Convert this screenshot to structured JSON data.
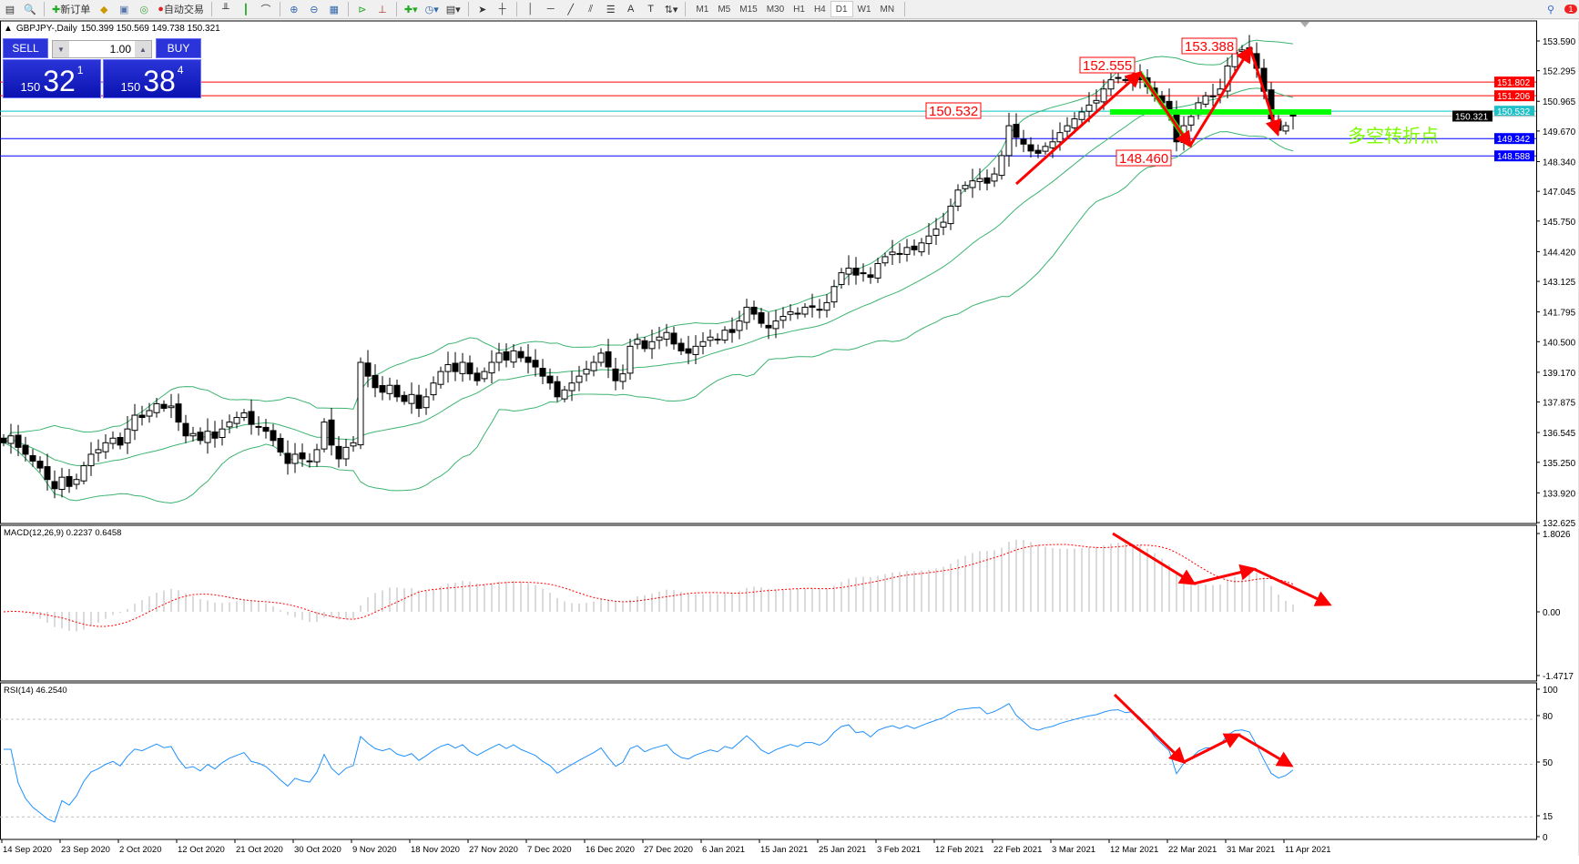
{
  "toolbar": {
    "new_order": "新订单",
    "auto_trading": "自动交易",
    "timeframes": [
      "M1",
      "M5",
      "M15",
      "M30",
      "H1",
      "H4",
      "D1",
      "W1",
      "MN"
    ],
    "active_timeframe": "D1",
    "notification_count": "1"
  },
  "header": {
    "symbol": "GBPJPY-,Daily",
    "ohlc": "150.399 150.569 149.738 150.321"
  },
  "trade_panel": {
    "sell_label": "SELL",
    "buy_label": "BUY",
    "lot": "1.00",
    "sell_small": "150",
    "sell_big": "32",
    "sell_pip": "1",
    "buy_small": "150",
    "buy_big": "38",
    "buy_pip": "4"
  },
  "colors": {
    "bull": "#ffffff",
    "bear": "#000000",
    "bands": "#3cb371",
    "macd_hist": "#c0c0c0",
    "macd_signal": "#ff0000",
    "rsi": "#1e90ff",
    "annotation": "#ff0000",
    "pivot_line": "#00ff00"
  },
  "chart_data": {
    "type": "candlestick",
    "symbol": "GBPJPY-",
    "timeframe": "Daily",
    "ylim": [
      132.625,
      153.59
    ],
    "price_ticks": [
      "153.590",
      "152.295",
      "150.965",
      "149.670",
      "148.340",
      "147.045",
      "145.750",
      "144.420",
      "143.125",
      "141.795",
      "140.500",
      "139.170",
      "137.875",
      "136.545",
      "135.250",
      "133.920",
      "132.625"
    ],
    "date_ticks": [
      "14 Sep 2020",
      "23 Sep 2020",
      "2 Oct 2020",
      "12 Oct 2020",
      "21 Oct 2020",
      "30 Oct 2020",
      "9 Nov 2020",
      "18 Nov 2020",
      "27 Nov 2020",
      "7 Dec 2020",
      "16 Dec 2020",
      "27 Dec 2020",
      "6 Jan 2021",
      "15 Jan 2021",
      "25 Jan 2021",
      "3 Feb 2021",
      "12 Feb 2021",
      "22 Feb 2021",
      "3 Mar 2021",
      "12 Mar 2021",
      "22 Mar 2021",
      "31 Mar 2021",
      "11 Apr 2021"
    ],
    "last_bar": {
      "open": 150.399,
      "high": 150.569,
      "low": 149.738,
      "close": 150.321
    },
    "closes": [
      136.1,
      136.4,
      135.9,
      135.6,
      135.3,
      135.0,
      134.5,
      134.1,
      134.6,
      134.2,
      134.5,
      135.1,
      135.6,
      135.8,
      136.1,
      136.3,
      136.0,
      136.7,
      137.3,
      137.2,
      137.5,
      137.8,
      137.6,
      137.7,
      137.0,
      136.4,
      136.5,
      136.2,
      136.6,
      136.3,
      136.7,
      137.0,
      137.2,
      137.4,
      136.9,
      136.8,
      136.6,
      136.2,
      135.7,
      135.2,
      135.6,
      135.4,
      135.3,
      135.8,
      137.0,
      136.0,
      135.4,
      135.9,
      136.1,
      139.6,
      139.0,
      138.5,
      138.3,
      138.6,
      138.1,
      137.9,
      138.2,
      137.6,
      138.1,
      138.7,
      139.2,
      139.5,
      139.2,
      139.6,
      139.1,
      138.8,
      139.2,
      139.6,
      140.0,
      139.7,
      140.1,
      139.8,
      139.6,
      139.4,
      139.0,
      138.7,
      138.1,
      138.4,
      138.7,
      139.0,
      139.3,
      139.6,
      140.0,
      139.4,
      138.8,
      139.1,
      140.3,
      140.6,
      140.2,
      140.5,
      140.7,
      140.9,
      140.4,
      140.1,
      140.0,
      140.3,
      140.5,
      140.7,
      140.6,
      141.0,
      140.9,
      141.4,
      142.0,
      141.7,
      141.3,
      141.1,
      141.4,
      141.6,
      141.8,
      141.7,
      142.0,
      142.0,
      141.9,
      142.2,
      142.9,
      143.5,
      143.7,
      143.4,
      143.5,
      143.3,
      143.9,
      144.2,
      144.4,
      144.3,
      144.6,
      144.5,
      144.8,
      145.1,
      145.4,
      145.7,
      146.4,
      147.1,
      147.3,
      147.5,
      147.6,
      147.4,
      147.8,
      148.6,
      149.9,
      149.4,
      149.1,
      148.8,
      148.7,
      149.0,
      149.2,
      149.6,
      149.9,
      150.2,
      150.5,
      150.8,
      151.0,
      151.5,
      151.9,
      152.0,
      151.9,
      152.1,
      151.9,
      151.6,
      151.2,
      150.9,
      150.6,
      149.2,
      149.9,
      150.3,
      150.9,
      151.2,
      151.2,
      151.5,
      152.5,
      153.1,
      153.2,
      153.1,
      152.4,
      151.4,
      150.2,
      149.7,
      149.9,
      150.321
    ],
    "horizontal_lines": [
      {
        "price": 151.802,
        "label": "151.802",
        "color": "#ff0000"
      },
      {
        "price": 151.206,
        "label": "151.206",
        "color": "#ff0000"
      },
      {
        "price": 150.532,
        "label": "150.532",
        "color": "#00c8c8"
      },
      {
        "price": 150.321,
        "label": "150.321",
        "color": "#000000"
      },
      {
        "price": 149.342,
        "label": "149.342",
        "color": "#0000ff"
      },
      {
        "price": 148.588,
        "label": "148.588",
        "color": "#0000ff"
      }
    ],
    "annotations": {
      "price_labels": [
        "152.555",
        "153.388",
        "150.532",
        "148.460"
      ],
      "pivot_text": "多空转折点",
      "pivot_price": 150.5
    },
    "bollinger": {
      "period": 20,
      "deviation": 2
    },
    "macd": {
      "label": "MACD(12,26,9) 0.2237 0.6458",
      "ticks": [
        "1.8026",
        "0.00",
        "-1.4717"
      ],
      "ylim": [
        -1.4717,
        1.8026
      ]
    },
    "rsi": {
      "label": "RSI(14) 46.2540",
      "ticks": [
        "100",
        "80",
        "50",
        "15",
        "0"
      ],
      "levels": [
        80,
        50,
        15
      ],
      "ylim": [
        0,
        100
      ]
    }
  }
}
